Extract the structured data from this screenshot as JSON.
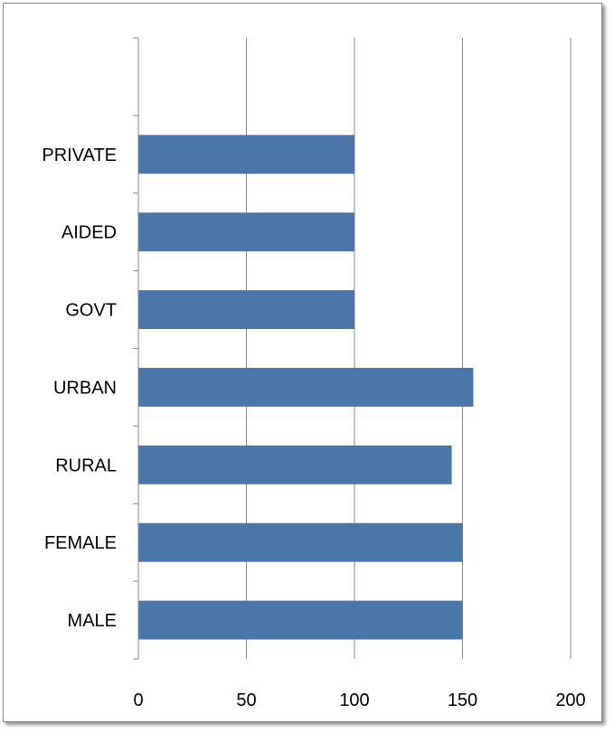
{
  "chart_data": {
    "type": "bar",
    "orientation": "horizontal",
    "title": "",
    "xlabel": "",
    "ylabel": "",
    "categories": [
      "MALE",
      "FEMALE",
      "RURAL",
      "URBAN",
      "GOVT",
      "AIDED",
      "PRIVATE"
    ],
    "values": [
      150,
      150,
      145,
      155,
      100,
      100,
      100
    ],
    "xlim": [
      0,
      200
    ],
    "x_ticks": [
      "0",
      "50",
      "100",
      "150",
      "200"
    ],
    "category_slots": 8,
    "grid": true,
    "legend": "none",
    "bar_color": "#4a76aa",
    "grid_color": "#8a8a8a"
  }
}
